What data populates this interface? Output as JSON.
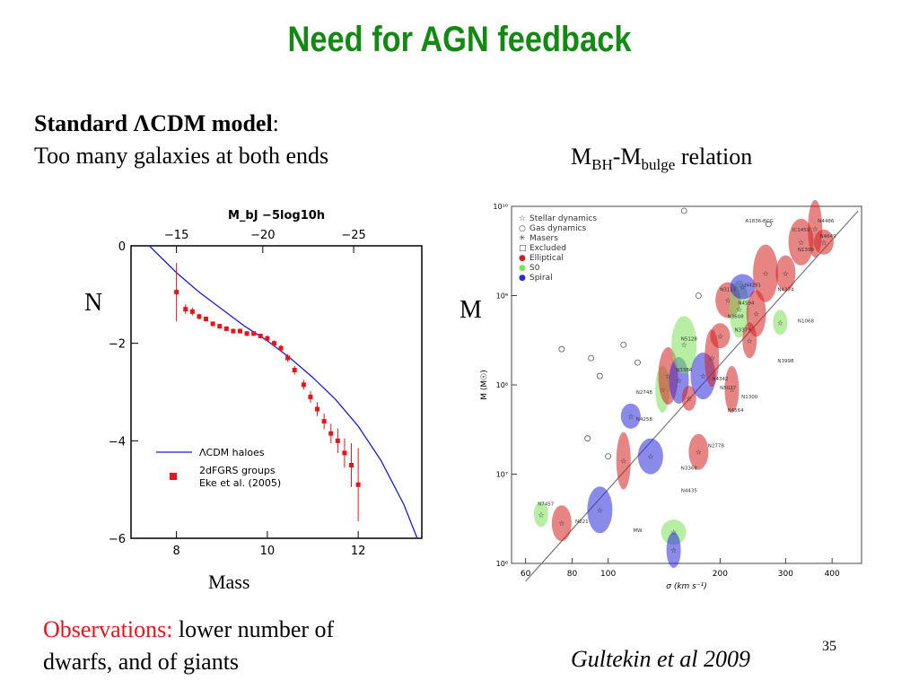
{
  "slide": {
    "title": "Need for AGN feedback",
    "left_heading_bold": "Standard ",
    "left_heading_lambda": "Λ",
    "left_heading_bold2": "CDM model",
    "left_heading_colon": ":",
    "left_subheading": "Too many galaxies at both ends",
    "right_heading_M1": "M",
    "right_heading_sub1": "BH",
    "right_heading_dash": "-M",
    "right_heading_sub2": "bulge",
    "right_heading_rest": " relation",
    "label_N": "N",
    "label_M": "M",
    "label_mass": "Mass",
    "obs_red": "Observations:",
    "obs_line1": " lower number of",
    "obs_line2": "dwarfs, and of giants",
    "citation": "Gultekin et al 2009",
    "page_number": "35"
  },
  "chart_data": [
    {
      "type": "scatter",
      "title": "",
      "top_axis_label": "M_bJ −5log10h",
      "xlim": [
        7.0,
        13.4
      ],
      "ylim": [
        -6,
        0
      ],
      "x_ticks": [
        "8",
        "10",
        "12"
      ],
      "y_ticks": [
        "0",
        "−2",
        "−4",
        "−6"
      ],
      "top_ticks": [
        "−15",
        "−20",
        "−25"
      ],
      "legend": [
        "ΛCDM haloes",
        "2dFGRS groups",
        "Eke et al. (2005)"
      ],
      "colors": {
        "model": "#1a1adc",
        "obs": "#e8141a"
      },
      "model_curve": {
        "x": [
          7.4,
          8.0,
          8.5,
          9.0,
          9.5,
          10.0,
          10.5,
          11.0,
          11.5,
          12.0,
          12.5,
          13.0,
          13.3
        ],
        "y": [
          0.0,
          -0.55,
          -0.95,
          -1.3,
          -1.65,
          -1.95,
          -2.3,
          -2.7,
          -3.15,
          -3.7,
          -4.4,
          -5.3,
          -6.0
        ]
      },
      "observations": {
        "x": [
          8.0,
          8.2,
          8.35,
          8.5,
          8.65,
          8.8,
          8.95,
          9.1,
          9.25,
          9.4,
          9.55,
          9.7,
          9.85,
          10.0,
          10.15,
          10.3,
          10.45,
          10.6,
          10.8,
          10.95,
          11.1,
          11.25,
          11.4,
          11.55,
          11.7,
          11.85,
          12.0
        ],
        "y": [
          -0.95,
          -1.3,
          -1.35,
          -1.45,
          -1.5,
          -1.6,
          -1.65,
          -1.7,
          -1.75,
          -1.75,
          -1.8,
          -1.8,
          -1.85,
          -1.9,
          -2.0,
          -2.1,
          -2.3,
          -2.55,
          -2.85,
          -3.1,
          -3.35,
          -3.6,
          -3.85,
          -4.0,
          -4.25,
          -4.5,
          -4.9
        ],
        "err": [
          0.6,
          0.1,
          0.08,
          0.06,
          0.05,
          0.05,
          0.05,
          0.05,
          0.05,
          0.05,
          0.05,
          0.05,
          0.05,
          0.06,
          0.06,
          0.07,
          0.08,
          0.09,
          0.1,
          0.12,
          0.14,
          0.16,
          0.2,
          0.25,
          0.3,
          0.45,
          0.75
        ]
      }
    },
    {
      "type": "scatter",
      "title": "",
      "xlabel": "σ (km s⁻¹)",
      "ylabel": "M (M☉)",
      "x_scale": "log",
      "y_scale": "log",
      "xlim": [
        55,
        480
      ],
      "ylim_log10": [
        6,
        10
      ],
      "x_ticks": [
        "60",
        "80",
        "100",
        "200",
        "300",
        "400"
      ],
      "y_ticks": [
        "10⁶",
        "10⁷",
        "10⁸",
        "10⁹",
        "10¹⁰"
      ],
      "legend": [
        "Stellar dynamics",
        "Gas dynamics",
        "Masers",
        "Excluded",
        "Elliptical",
        "S0",
        "Spiral"
      ],
      "colors": {
        "Elliptical": "#d42020",
        "S0": "#7be05a",
        "Spiral": "#2a2ad8",
        "fit": "#777777"
      },
      "fit_line": {
        "sigma": [
          60,
          470
        ],
        "log_mass": [
          5.8,
          9.95
        ]
      },
      "ellipse_labels": [
        "A1836-BCG",
        "N4486",
        "N4649",
        "N1399",
        "IC1459",
        "N5128",
        "N3998",
        "N4594",
        "N2748",
        "N4258",
        "N1300",
        "N2778",
        "N3384",
        "N3368",
        "N4435",
        "N7457",
        "N221",
        "N4564",
        "MW",
        "N1068",
        "N4342",
        "N3379",
        "N3608",
        "N4291",
        "N3115",
        "N4374",
        "N5077"
      ],
      "points": [
        {
          "s": 66,
          "lm": 6.55,
          "c": "S0"
        },
        {
          "s": 75,
          "lm": 6.45,
          "c": "Elliptical"
        },
        {
          "s": 95,
          "lm": 6.6,
          "c": "Spiral"
        },
        {
          "s": 110,
          "lm": 7.15,
          "c": "Elliptical"
        },
        {
          "s": 115,
          "lm": 7.65,
          "c": "Spiral"
        },
        {
          "s": 130,
          "lm": 7.2,
          "c": "Spiral"
        },
        {
          "s": 140,
          "lm": 7.95,
          "c": "S0"
        },
        {
          "s": 145,
          "lm": 8.1,
          "c": "Elliptical"
        },
        {
          "s": 150,
          "lm": 6.35,
          "c": "S0"
        },
        {
          "s": 150,
          "lm": 6.15,
          "c": "Spiral"
        },
        {
          "s": 155,
          "lm": 8.05,
          "c": "Spiral"
        },
        {
          "s": 160,
          "lm": 8.45,
          "c": "S0"
        },
        {
          "s": 165,
          "lm": 7.85,
          "c": "Elliptical"
        },
        {
          "s": 175,
          "lm": 7.25,
          "c": "Elliptical"
        },
        {
          "s": 180,
          "lm": 8.1,
          "c": "Spiral"
        },
        {
          "s": 190,
          "lm": 8.3,
          "c": "Elliptical"
        },
        {
          "s": 200,
          "lm": 8.55,
          "c": "Elliptical"
        },
        {
          "s": 210,
          "lm": 8.95,
          "c": "Elliptical"
        },
        {
          "s": 215,
          "lm": 7.95,
          "c": "Elliptical"
        },
        {
          "s": 225,
          "lm": 8.85,
          "c": "S0"
        },
        {
          "s": 230,
          "lm": 9.1,
          "c": "Spiral"
        },
        {
          "s": 240,
          "lm": 8.5,
          "c": "Elliptical"
        },
        {
          "s": 250,
          "lm": 8.8,
          "c": "Elliptical"
        },
        {
          "s": 265,
          "lm": 9.25,
          "c": "Elliptical"
        },
        {
          "s": 290,
          "lm": 8.7,
          "c": "S0"
        },
        {
          "s": 300,
          "lm": 9.25,
          "c": "Elliptical"
        },
        {
          "s": 330,
          "lm": 9.6,
          "c": "Elliptical"
        },
        {
          "s": 360,
          "lm": 9.75,
          "c": "Elliptical"
        },
        {
          "s": 380,
          "lm": 9.6,
          "c": "Elliptical"
        }
      ]
    }
  ]
}
